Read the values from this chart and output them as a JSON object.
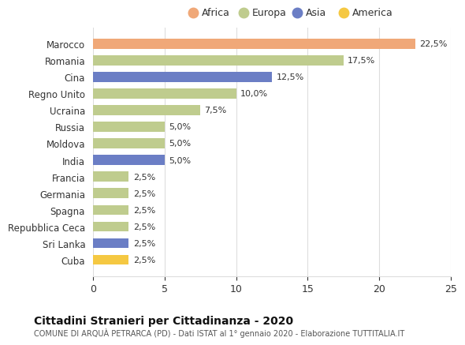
{
  "categories": [
    "Cuba",
    "Sri Lanka",
    "Repubblica Ceca",
    "Spagna",
    "Germania",
    "Francia",
    "India",
    "Moldova",
    "Russia",
    "Ucraina",
    "Regno Unito",
    "Cina",
    "Romania",
    "Marocco"
  ],
  "values": [
    2.5,
    2.5,
    2.5,
    2.5,
    2.5,
    2.5,
    5.0,
    5.0,
    5.0,
    7.5,
    10.0,
    12.5,
    17.5,
    22.5
  ],
  "colors": [
    "#F5C842",
    "#6B7EC5",
    "#BFCC8E",
    "#BFCC8E",
    "#BFCC8E",
    "#BFCC8E",
    "#6B7EC5",
    "#BFCC8E",
    "#BFCC8E",
    "#BFCC8E",
    "#BFCC8E",
    "#6B7EC5",
    "#BFCC8E",
    "#F0A878"
  ],
  "labels": [
    "2,5%",
    "2,5%",
    "2,5%",
    "2,5%",
    "2,5%",
    "2,5%",
    "5,0%",
    "5,0%",
    "5,0%",
    "7,5%",
    "10,0%",
    "12,5%",
    "17,5%",
    "22,5%"
  ],
  "legend": [
    {
      "label": "Africa",
      "color": "#F0A878"
    },
    {
      "label": "Europa",
      "color": "#BFCC8E"
    },
    {
      "label": "Asia",
      "color": "#6B7EC5"
    },
    {
      "label": "America",
      "color": "#F5C842"
    }
  ],
  "xlim": [
    0,
    25
  ],
  "xticks": [
    0,
    5,
    10,
    15,
    20,
    25
  ],
  "title": "Cittadini Stranieri per Cittadinanza - 2020",
  "subtitle": "COMUNE DI ARQUÀ PETRARCA (PD) - Dati ISTAT al 1° gennaio 2020 - Elaborazione TUTTITALIA.IT",
  "background_color": "#ffffff",
  "grid_color": "#dddddd"
}
